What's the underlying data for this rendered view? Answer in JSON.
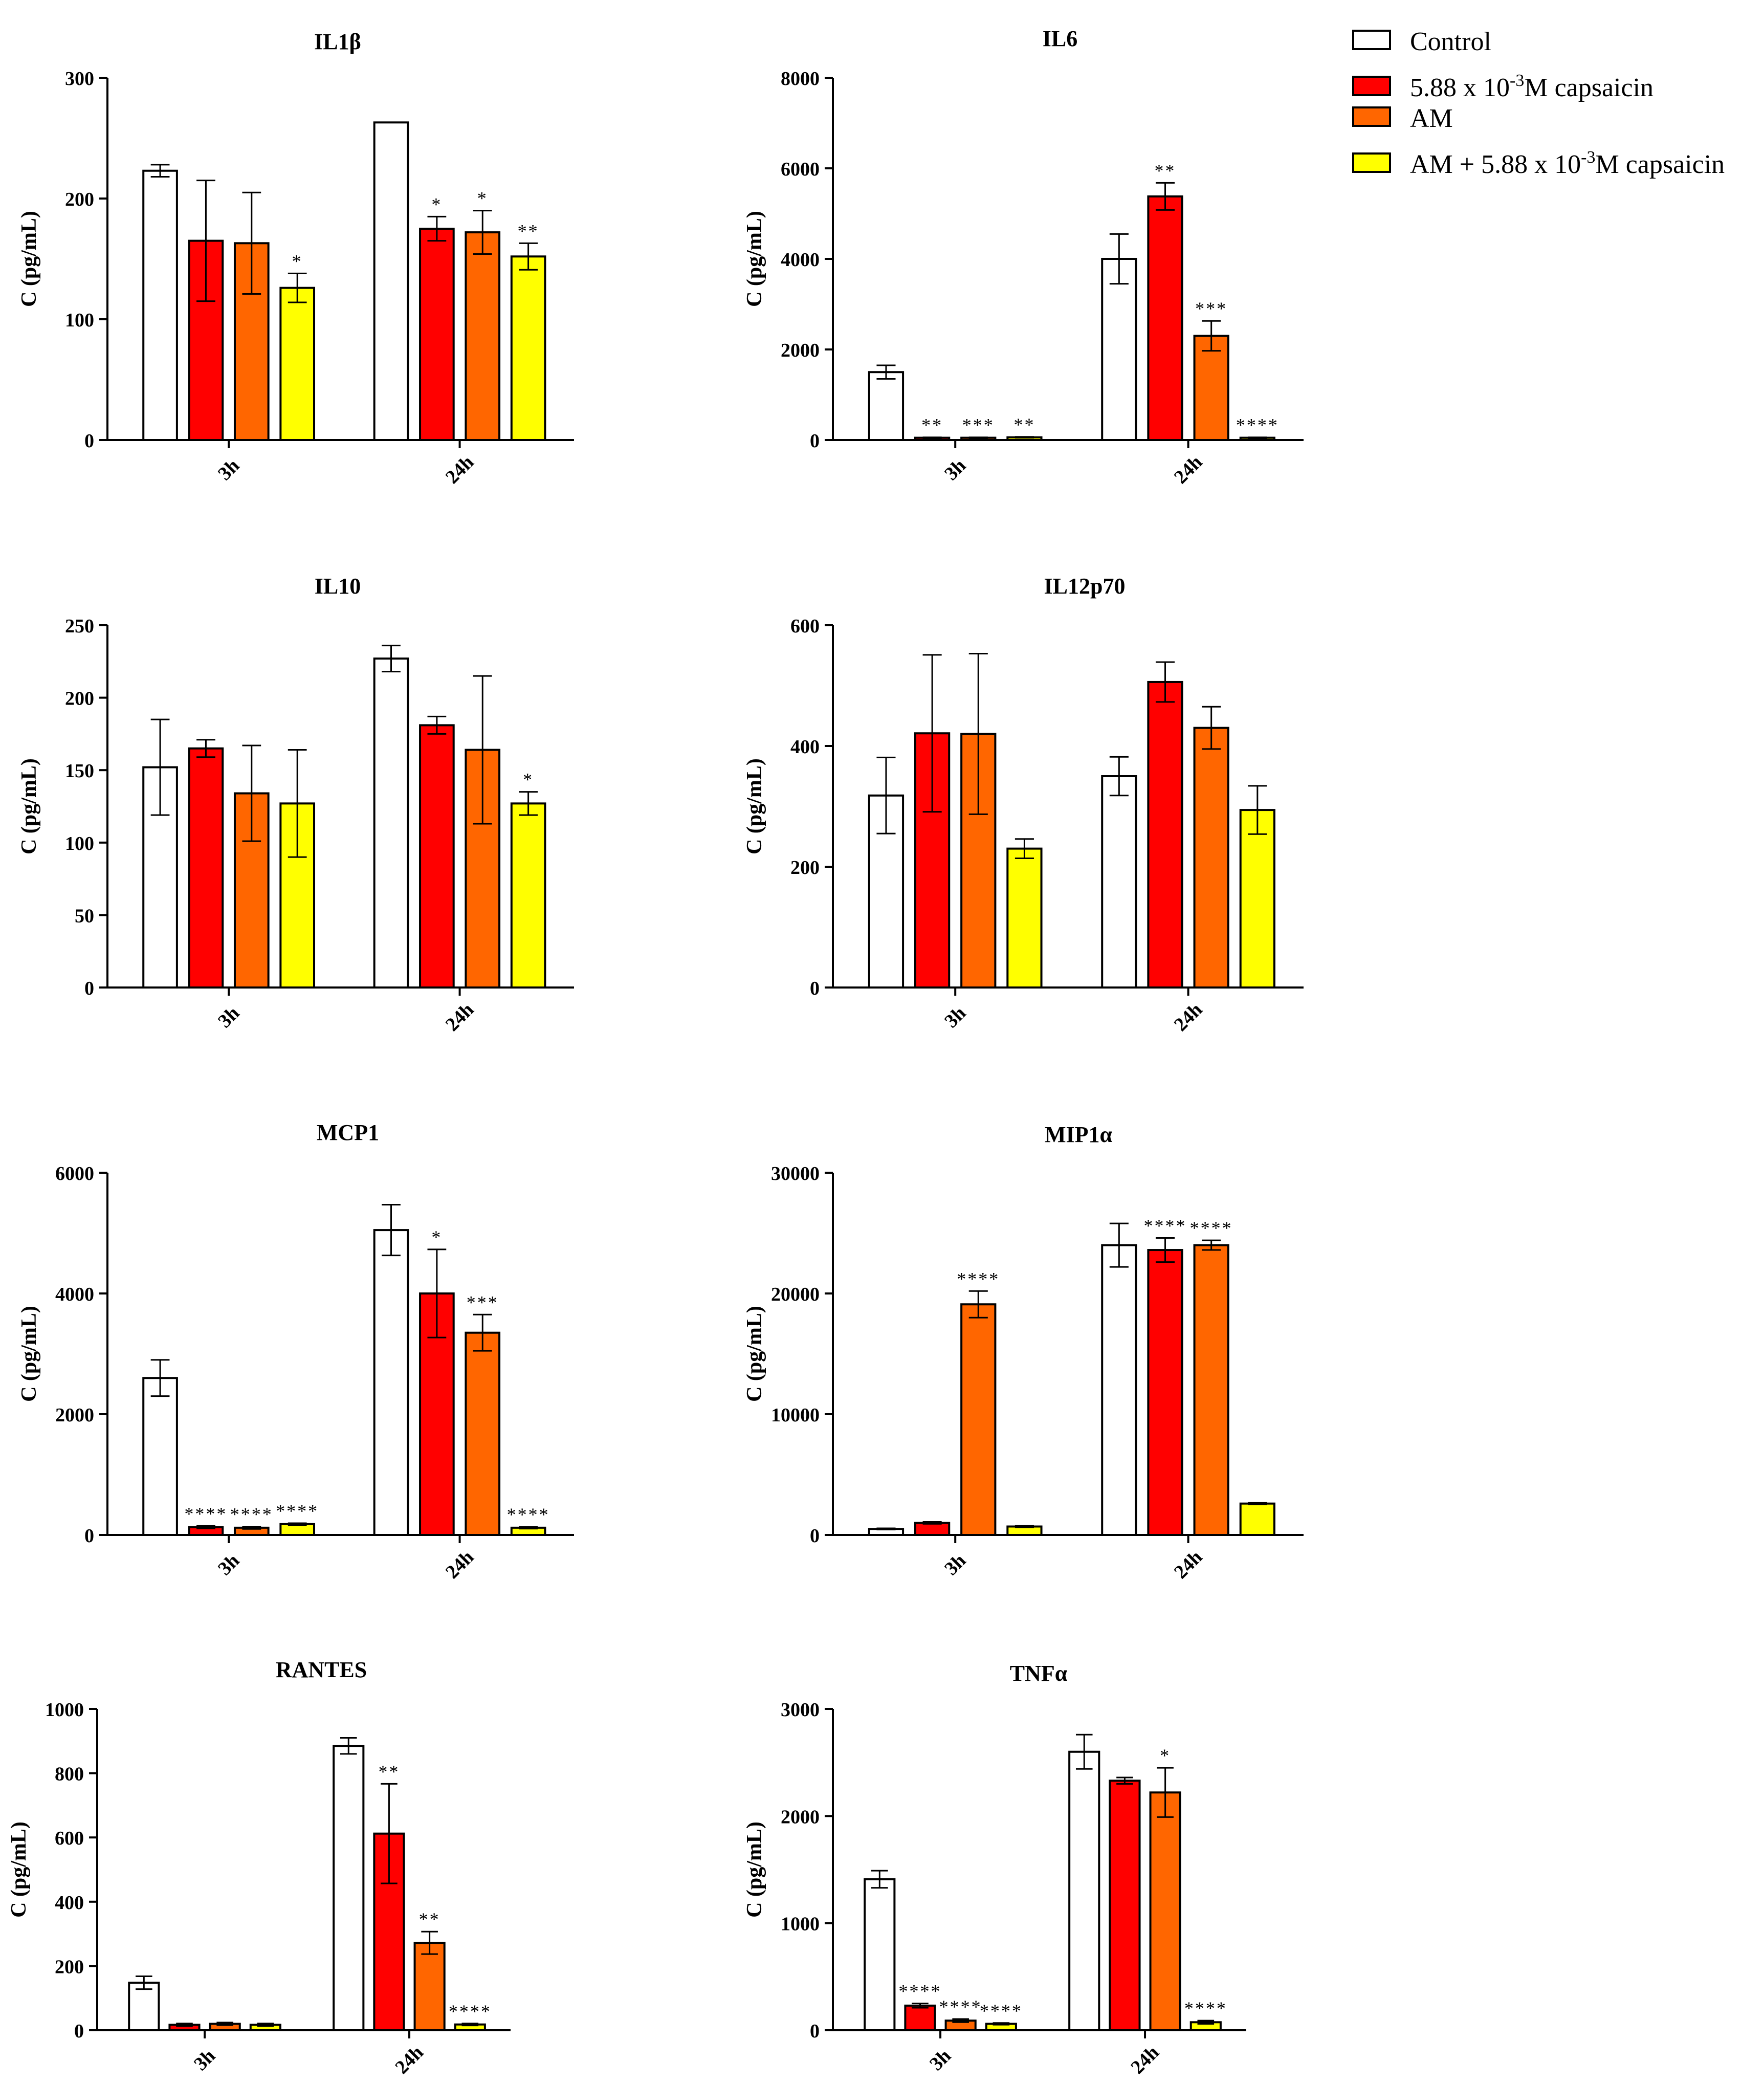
{
  "legend": {
    "entries": [
      {
        "label": "Control",
        "sup": "",
        "suffix": "",
        "color": "#ffffff"
      },
      {
        "label": "5.88 x 10",
        "sup": "-3",
        "suffix": "M capsaicin",
        "color": "#ff0000"
      },
      {
        "label": "AM",
        "sup": "",
        "suffix": "",
        "color": "#ff6600"
      },
      {
        "label": "AM + 5.88 x 10",
        "sup": "-3",
        "suffix": "M capsaicin",
        "color": "#ffff00"
      }
    ]
  },
  "chart_data": [
    {
      "type": "bar",
      "title": "IL1β",
      "ylabel": "C (pg/mL)",
      "xlabel": "",
      "categories": [
        "3h",
        "24h"
      ],
      "ylim": [
        0,
        300
      ],
      "yticks": [
        0,
        100,
        200,
        300
      ],
      "series": [
        {
          "name": "Control",
          "color": "#ffffff",
          "values": [
            223,
            263
          ],
          "errors": [
            5,
            0
          ],
          "sig": [
            "",
            ""
          ]
        },
        {
          "name": "5.88 x 10-3M capsaicin",
          "color": "#ff0000",
          "values": [
            165,
            175
          ],
          "errors": [
            50,
            10
          ],
          "sig": [
            "",
            "*"
          ]
        },
        {
          "name": "AM",
          "color": "#ff6600",
          "values": [
            163,
            172
          ],
          "errors": [
            42,
            18
          ],
          "sig": [
            "",
            "*"
          ]
        },
        {
          "name": "AM + 5.88 x 10-3M capsaicin",
          "color": "#ffff00",
          "values": [
            126,
            152
          ],
          "errors": [
            12,
            11
          ],
          "sig": [
            "*",
            "**"
          ]
        }
      ]
    },
    {
      "type": "bar",
      "title": "IL6",
      "ylabel": "C (pg/mL)",
      "xlabel": "",
      "categories": [
        "3h",
        "24h"
      ],
      "ylim": [
        0,
        8000
      ],
      "yticks": [
        0,
        2000,
        4000,
        6000,
        8000
      ],
      "series": [
        {
          "name": "Control",
          "color": "#ffffff",
          "values": [
            1500,
            4000
          ],
          "errors": [
            150,
            550
          ],
          "sig": [
            "",
            ""
          ]
        },
        {
          "name": "5.88 x 10-3M capsaicin",
          "color": "#ff0000",
          "values": [
            50,
            5380
          ],
          "errors": [
            10,
            300
          ],
          "sig": [
            "**",
            "**"
          ]
        },
        {
          "name": "AM",
          "color": "#ff6600",
          "values": [
            50,
            2300
          ],
          "errors": [
            10,
            330
          ],
          "sig": [
            "***",
            "***"
          ]
        },
        {
          "name": "AM + 5.88 x 10-3M capsaicin",
          "color": "#ffff00",
          "values": [
            60,
            50
          ],
          "errors": [
            10,
            10
          ],
          "sig": [
            "**",
            "****"
          ]
        }
      ]
    },
    {
      "type": "bar",
      "title": "IL10",
      "ylabel": "C (pg/mL)",
      "xlabel": "",
      "categories": [
        "3h",
        "24h"
      ],
      "ylim": [
        0,
        250
      ],
      "yticks": [
        0,
        50,
        100,
        150,
        200,
        250
      ],
      "series": [
        {
          "name": "Control",
          "color": "#ffffff",
          "values": [
            152,
            227
          ],
          "errors": [
            33,
            9
          ],
          "sig": [
            "",
            ""
          ]
        },
        {
          "name": "5.88 x 10-3M capsaicin",
          "color": "#ff0000",
          "values": [
            165,
            181
          ],
          "errors": [
            6,
            6
          ],
          "sig": [
            "",
            ""
          ]
        },
        {
          "name": "AM",
          "color": "#ff6600",
          "values": [
            134,
            164
          ],
          "errors": [
            33,
            51
          ],
          "sig": [
            "",
            ""
          ]
        },
        {
          "name": "AM + 5.88 x 10-3M capsaicin",
          "color": "#ffff00",
          "values": [
            127,
            127
          ],
          "errors": [
            37,
            8
          ],
          "sig": [
            "",
            "*"
          ]
        }
      ]
    },
    {
      "type": "bar",
      "title": "IL12p70",
      "ylabel": "C (pg/mL)",
      "xlabel": "",
      "categories": [
        "3h",
        "24h"
      ],
      "ylim": [
        0,
        600
      ],
      "yticks": [
        0,
        200,
        400,
        600
      ],
      "series": [
        {
          "name": "Control",
          "color": "#ffffff",
          "values": [
            318,
            350
          ],
          "errors": [
            63,
            32
          ],
          "sig": [
            "",
            ""
          ]
        },
        {
          "name": "5.88 x 10-3M capsaicin",
          "color": "#ff0000",
          "values": [
            421,
            506
          ],
          "errors": [
            130,
            33
          ],
          "sig": [
            "",
            ""
          ]
        },
        {
          "name": "AM",
          "color": "#ff6600",
          "values": [
            420,
            430
          ],
          "errors": [
            133,
            35
          ],
          "sig": [
            "",
            ""
          ]
        },
        {
          "name": "AM + 5.88 x 10-3M capsaicin",
          "color": "#ffff00",
          "values": [
            230,
            294
          ],
          "errors": [
            16,
            40
          ],
          "sig": [
            "",
            ""
          ]
        }
      ]
    },
    {
      "type": "bar",
      "title": "MCP1",
      "ylabel": "C (pg/mL)",
      "xlabel": "",
      "categories": [
        "3h",
        "24h"
      ],
      "ylim": [
        0,
        6000
      ],
      "yticks": [
        0,
        2000,
        4000,
        6000
      ],
      "series": [
        {
          "name": "Control",
          "color": "#ffffff",
          "values": [
            2600,
            5050
          ],
          "errors": [
            300,
            420
          ],
          "sig": [
            "",
            ""
          ]
        },
        {
          "name": "5.88 x 10-3M capsaicin",
          "color": "#ff0000",
          "values": [
            130,
            4000
          ],
          "errors": [
            20,
            730
          ],
          "sig": [
            "****",
            "*"
          ]
        },
        {
          "name": "AM",
          "color": "#ff6600",
          "values": [
            120,
            3350
          ],
          "errors": [
            20,
            300
          ],
          "sig": [
            "****",
            "***"
          ]
        },
        {
          "name": "AM + 5.88 x 10-3M capsaicin",
          "color": "#ffff00",
          "values": [
            180,
            120
          ],
          "errors": [
            15,
            15
          ],
          "sig": [
            "****",
            "****"
          ]
        }
      ]
    },
    {
      "type": "bar",
      "title": "MIP1α",
      "ylabel": "C (pg/mL)",
      "xlabel": "",
      "categories": [
        "3h",
        "24h"
      ],
      "ylim": [
        0,
        30000
      ],
      "yticks": [
        0,
        10000,
        20000,
        30000
      ],
      "series": [
        {
          "name": "Control",
          "color": "#ffffff",
          "values": [
            500,
            24000
          ],
          "errors": [
            50,
            1800
          ],
          "sig": [
            "",
            ""
          ]
        },
        {
          "name": "5.88 x 10-3M capsaicin",
          "color": "#ff0000",
          "values": [
            1000,
            23600
          ],
          "errors": [
            80,
            1000
          ],
          "sig": [
            "",
            "****"
          ]
        },
        {
          "name": "AM",
          "color": "#ff6600",
          "values": [
            19100,
            24000
          ],
          "errors": [
            1100,
            400
          ],
          "sig": [
            "****",
            "****"
          ]
        },
        {
          "name": "AM + 5.88 x 10-3M capsaicin",
          "color": "#ffff00",
          "values": [
            700,
            2600
          ],
          "errors": [
            60,
            60
          ],
          "sig": [
            "",
            ""
          ]
        }
      ]
    },
    {
      "type": "bar",
      "title": "RANTES",
      "ylabel": "C (pg/mL)",
      "xlabel": "",
      "categories": [
        "3h",
        "24h"
      ],
      "ylim": [
        0,
        1000
      ],
      "yticks": [
        0,
        200,
        400,
        600,
        800,
        1000
      ],
      "series": [
        {
          "name": "Control",
          "color": "#ffffff",
          "values": [
            148,
            885
          ],
          "errors": [
            20,
            25
          ],
          "sig": [
            "",
            ""
          ]
        },
        {
          "name": "5.88 x 10-3M capsaicin",
          "color": "#ff0000",
          "values": [
            17,
            612
          ],
          "errors": [
            4,
            155
          ],
          "sig": [
            "",
            "**"
          ]
        },
        {
          "name": "AM",
          "color": "#ff6600",
          "values": [
            20,
            272
          ],
          "errors": [
            4,
            35
          ],
          "sig": [
            "",
            "**"
          ]
        },
        {
          "name": "AM + 5.88 x 10-3M capsaicin",
          "color": "#ffff00",
          "values": [
            17,
            18
          ],
          "errors": [
            4,
            3
          ],
          "sig": [
            "",
            "****"
          ]
        }
      ]
    },
    {
      "type": "bar",
      "title": "TNFα",
      "ylabel": "C (pg/mL)",
      "xlabel": "",
      "categories": [
        "3h",
        "24h"
      ],
      "ylim": [
        0,
        3000
      ],
      "yticks": [
        0,
        1000,
        2000,
        3000
      ],
      "series": [
        {
          "name": "Control",
          "color": "#ffffff",
          "values": [
            1410,
            2600
          ],
          "errors": [
            80,
            160
          ],
          "sig": [
            "",
            ""
          ]
        },
        {
          "name": "5.88 x 10-3M capsaicin",
          "color": "#ff0000",
          "values": [
            230,
            2330
          ],
          "errors": [
            20,
            30
          ],
          "sig": [
            "****",
            ""
          ]
        },
        {
          "name": "AM",
          "color": "#ff6600",
          "values": [
            90,
            2220
          ],
          "errors": [
            15,
            230
          ],
          "sig": [
            "****",
            "*"
          ]
        },
        {
          "name": "AM + 5.88 x 10-3M capsaicin",
          "color": "#ffff00",
          "values": [
            60,
            75
          ],
          "errors": [
            8,
            15
          ],
          "sig": [
            "****",
            "****"
          ]
        }
      ]
    }
  ]
}
